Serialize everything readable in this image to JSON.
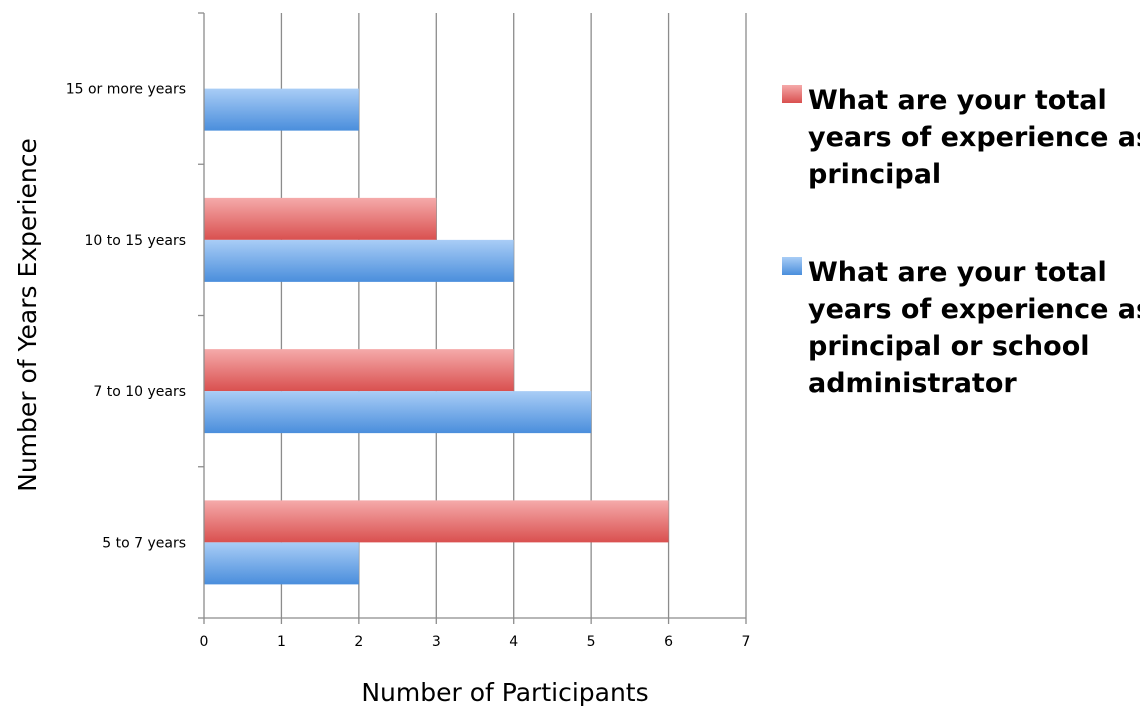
{
  "chart_data": {
    "type": "bar",
    "orientation": "horizontal",
    "categories": [
      "5 to 7 years",
      "7 to 10 years",
      "10 to 15 years",
      "15 or more years"
    ],
    "series": [
      {
        "name": "What are your total years of experience as a principal",
        "color": "#e0504f",
        "values": [
          6,
          4,
          3,
          null
        ]
      },
      {
        "name": "What are your total years of experience as a principal or school administrator",
        "color": "#4d90e0",
        "values": [
          2,
          5,
          4,
          2
        ]
      }
    ],
    "xlabel": "Number of Participants",
    "ylabel": "Number of Years Experience",
    "xlim": [
      0,
      7
    ],
    "xticks": [
      "0",
      "1",
      "2",
      "3",
      "4",
      "5",
      "6",
      "7"
    ],
    "grid": "vertical",
    "legend_position": "right"
  }
}
